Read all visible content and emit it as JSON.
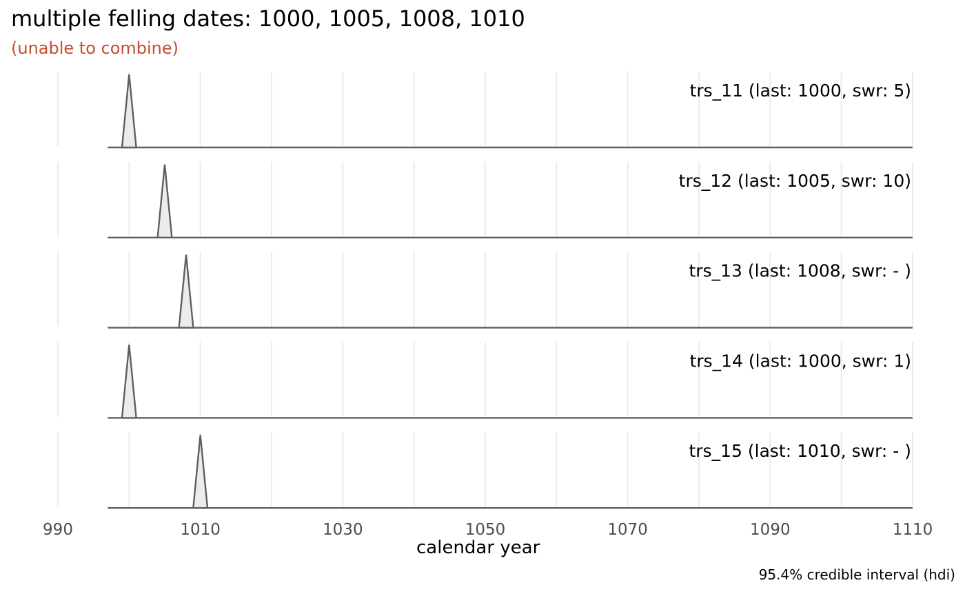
{
  "chart_data": {
    "type": "area",
    "title": "multiple felling dates: 1000, 1005, 1008, 1010",
    "subtitle": "(unable to combine)",
    "xlabel": "calendar year",
    "caption": "95.4% credible interval (hdi)",
    "xlim": [
      990,
      1110
    ],
    "x_ticks": [
      990,
      1010,
      1030,
      1050,
      1070,
      1090,
      1110
    ],
    "x_minor": [
      1000,
      1020,
      1040,
      1060,
      1080,
      1100
    ],
    "grid": true,
    "colors": {
      "line": "#5f5f5f",
      "fill": "#ececec",
      "subtitle": "#c94a30",
      "grid": "#ebebeb"
    },
    "series": [
      {
        "name": "trs_11",
        "label": "trs_11 (last: 1000, swr: 5)",
        "x_start": 997,
        "peak": 1000,
        "x_end": 1110
      },
      {
        "name": "trs_12",
        "label": "trs_12 (last: 1005, swr: 10)",
        "x_start": 997,
        "peak": 1005,
        "x_end": 1110
      },
      {
        "name": "trs_13",
        "label": "trs_13 (last: 1008, swr: - )",
        "x_start": 997,
        "peak": 1008,
        "x_end": 1110
      },
      {
        "name": "trs_14",
        "label": "trs_14 (last: 1000, swr: 1)",
        "x_start": 997,
        "peak": 1000,
        "x_end": 1110
      },
      {
        "name": "trs_15",
        "label": "trs_15 (last: 1010, swr: - )",
        "x_start": 997,
        "peak": 1010,
        "x_end": 1110
      }
    ]
  }
}
